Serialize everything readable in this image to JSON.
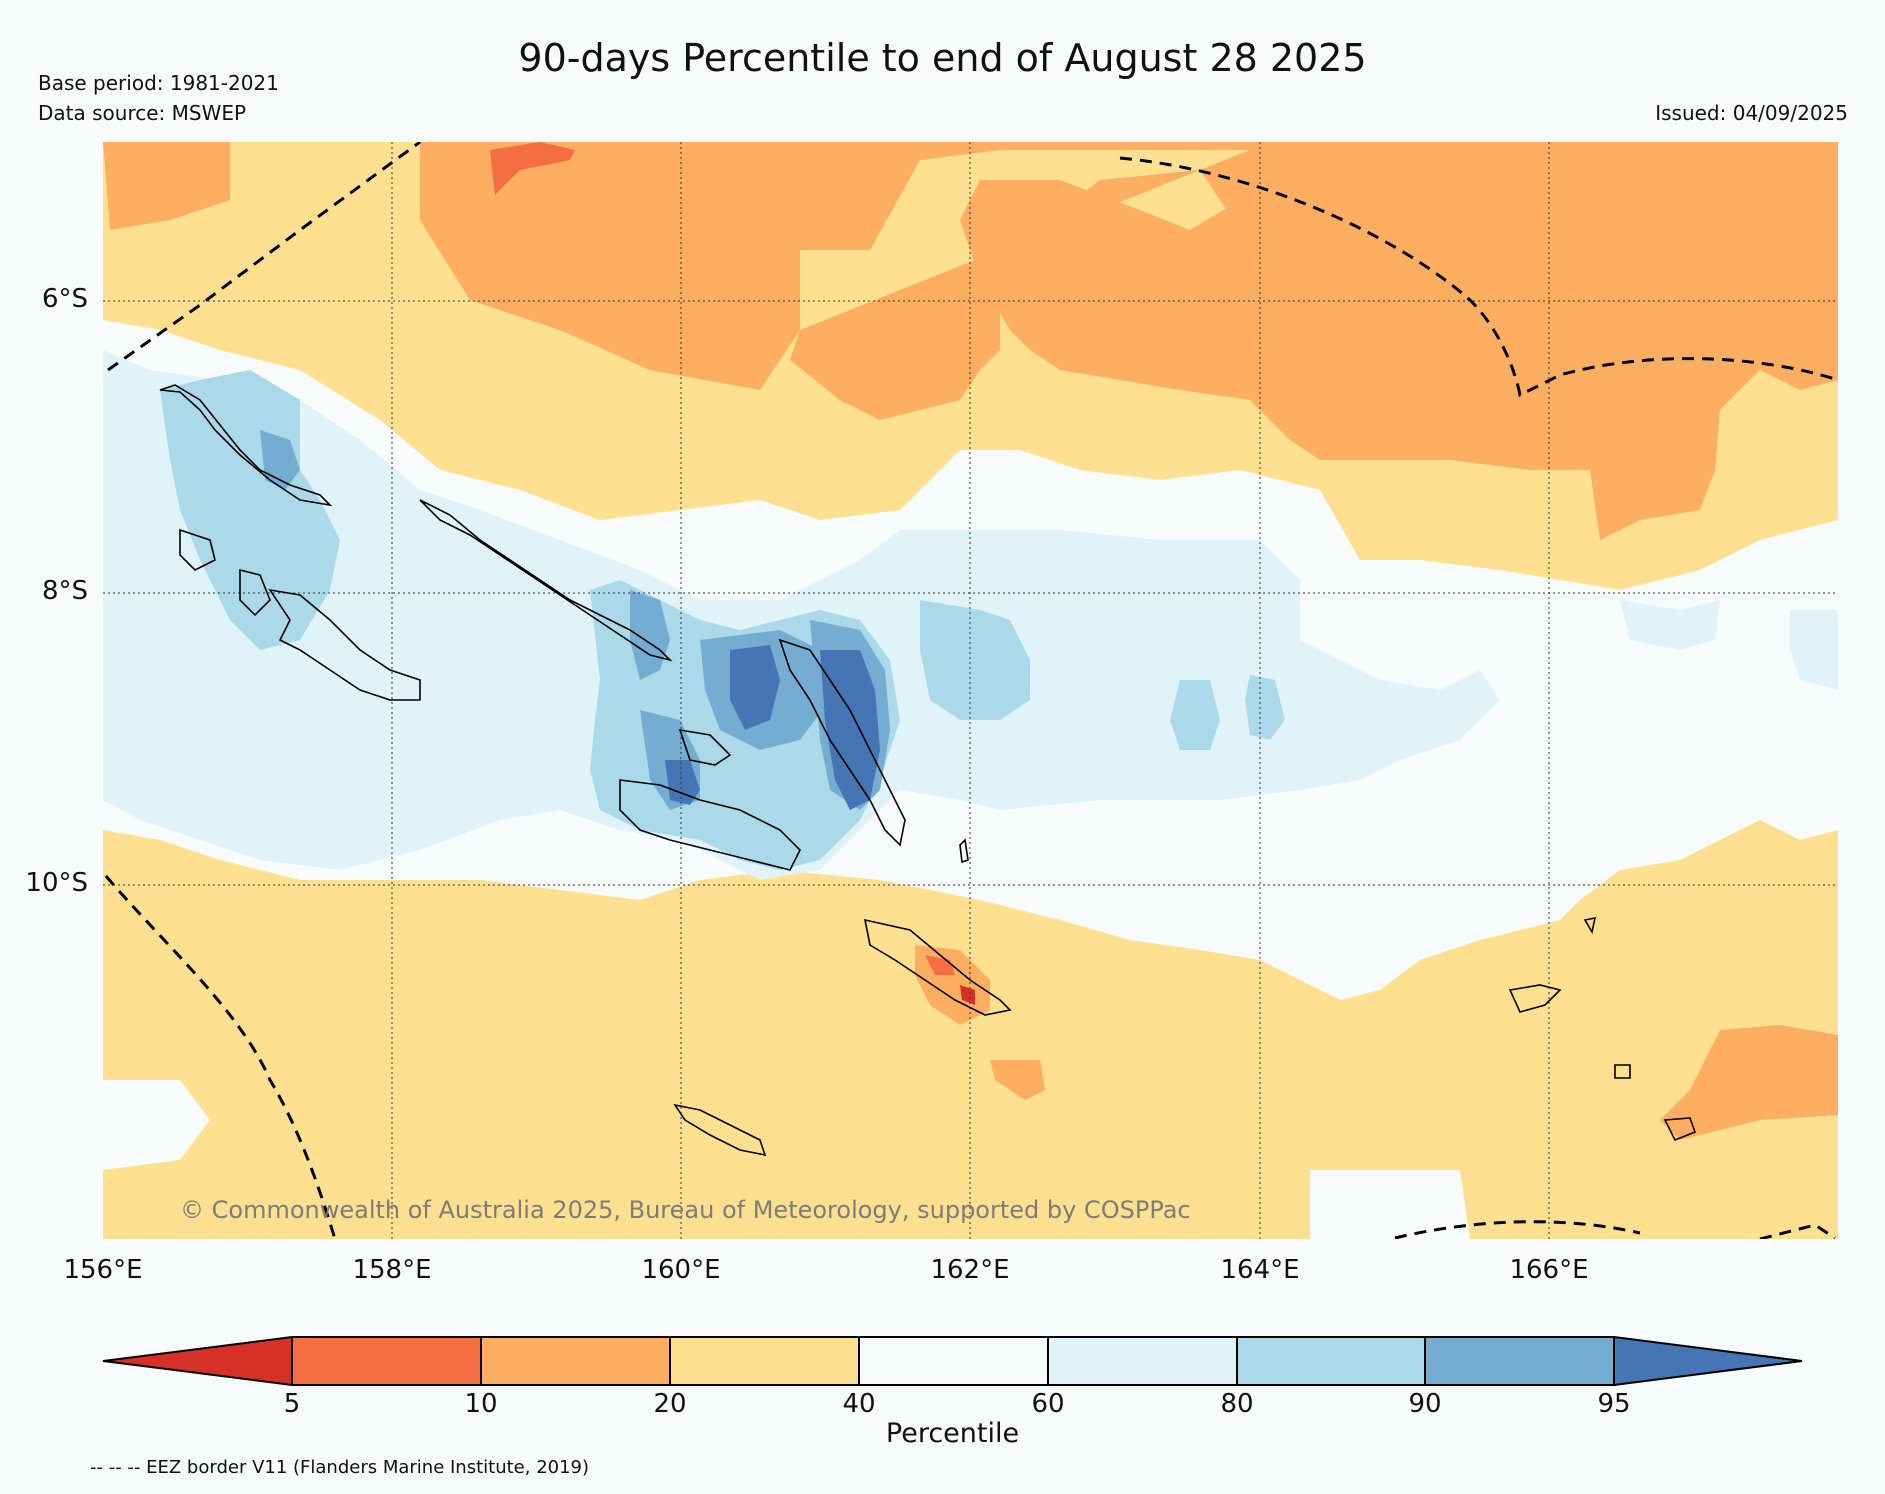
{
  "header": {
    "title": "90-days Percentile to end of August 28 2025",
    "base_period": "Base period: 1981-2021",
    "data_source": "Data source: MSWEP",
    "issued": "Issued: 04/09/2025"
  },
  "map": {
    "lat_labels": [
      "6°S",
      "8°S",
      "10°S"
    ],
    "lon_labels": [
      "156°E",
      "158°E",
      "160°E",
      "162°E",
      "164°E",
      "166°E"
    ],
    "copyright": "© Commonwealth of Australia 2025, Bureau of Meteorology, supported by COSPPac"
  },
  "colorbar": {
    "label": "Percentile",
    "ticks": [
      "5",
      "10",
      "20",
      "40",
      "60",
      "80",
      "90",
      "95"
    ],
    "colors": {
      "below_5": "#d73027",
      "p5_10": "#f46d43",
      "p10_20": "#fdae61",
      "p20_40": "#fee090",
      "p40_60": "#f7fbfc",
      "p60_80": "#e0f3f8",
      "p80_90": "#abd9e9",
      "p90_95": "#74add1",
      "above_95": "#4575b4"
    }
  },
  "footer": {
    "eez_note": "-- -- -- EEZ border V11 (Flanders Marine Institute, 2019)"
  }
}
